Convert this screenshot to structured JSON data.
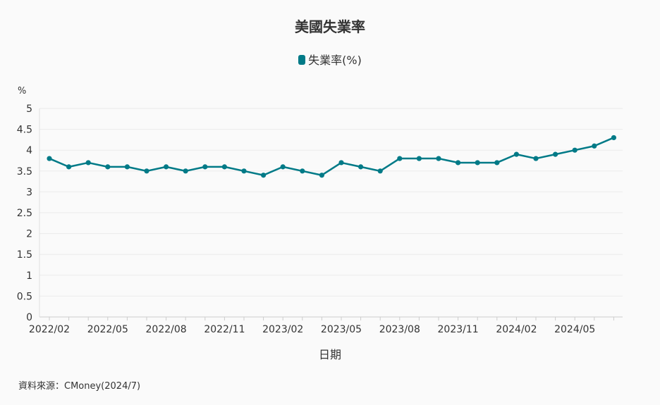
{
  "chart_data": {
    "type": "line",
    "title": "美國失業率",
    "xlabel": "日期",
    "ylabel": "%",
    "ylim": [
      0,
      5
    ],
    "yticks": [
      "0",
      "0.5",
      "1",
      "1.5",
      "2",
      "2.5",
      "3",
      "3.5",
      "4",
      "4.5",
      "5"
    ],
    "x_tick_labels": [
      "2022/02",
      "2022/05",
      "2022/08",
      "2022/11",
      "2023/02",
      "2023/05",
      "2023/08",
      "2023/11",
      "2024/02",
      "2024/05"
    ],
    "x": [
      "2022/02",
      "2022/03",
      "2022/04",
      "2022/05",
      "2022/06",
      "2022/07",
      "2022/08",
      "2022/09",
      "2022/10",
      "2022/11",
      "2022/12",
      "2023/01",
      "2023/02",
      "2023/03",
      "2023/04",
      "2023/05",
      "2023/06",
      "2023/07",
      "2023/08",
      "2023/09",
      "2023/10",
      "2023/11",
      "2023/12",
      "2024/01",
      "2024/02",
      "2024/03",
      "2024/04",
      "2024/05",
      "2024/06",
      "2024/07"
    ],
    "series": [
      {
        "name": "失業率(%)",
        "color": "#007a87",
        "values": [
          3.8,
          3.6,
          3.7,
          3.6,
          3.6,
          3.5,
          3.6,
          3.5,
          3.6,
          3.6,
          3.5,
          3.4,
          3.6,
          3.5,
          3.4,
          3.7,
          3.6,
          3.5,
          3.8,
          3.8,
          3.8,
          3.7,
          3.7,
          3.7,
          3.9,
          3.8,
          3.9,
          4.0,
          4.1,
          4.3
        ]
      }
    ],
    "grid": true,
    "legend_position": "top-center"
  },
  "legend_label": "失業率(%)",
  "source": "資料來源：CMoney(2024/7)"
}
